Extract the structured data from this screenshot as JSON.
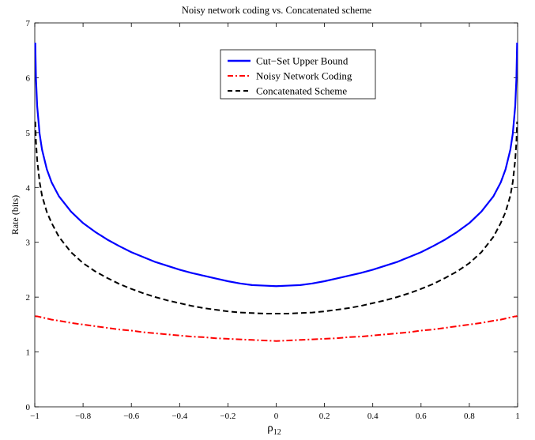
{
  "chart_data": {
    "type": "line",
    "title": "Noisy network coding vs. Concatenated scheme",
    "xlabel": "ρ",
    "xlabel_sub": "12",
    "ylabel": "Rate (bits)",
    "xlim": [
      -1,
      1
    ],
    "ylim": [
      0,
      7
    ],
    "xticks": [
      -1,
      -0.8,
      -0.6,
      -0.4,
      -0.2,
      0,
      0.2,
      0.4,
      0.6,
      0.8,
      1
    ],
    "xtick_labels": [
      "−1",
      "−0.8",
      "−0.6",
      "−0.4",
      "−0.2",
      "0",
      "0.2",
      "0.4",
      "0.6",
      "0.8",
      "1"
    ],
    "yticks": [
      0,
      1,
      2,
      3,
      4,
      5,
      6,
      7
    ],
    "ytick_labels": [
      "0",
      "1",
      "2",
      "3",
      "4",
      "5",
      "6",
      "7"
    ],
    "grid": false,
    "legend_position": "top-center",
    "x": [
      -0.998,
      -0.995,
      -0.99,
      -0.98,
      -0.97,
      -0.95,
      -0.93,
      -0.9,
      -0.85,
      -0.8,
      -0.75,
      -0.7,
      -0.65,
      -0.6,
      -0.55,
      -0.5,
      -0.45,
      -0.4,
      -0.35,
      -0.3,
      -0.25,
      -0.2,
      -0.15,
      -0.1,
      -0.05,
      0,
      0.05,
      0.1,
      0.15,
      0.2,
      0.25,
      0.3,
      0.35,
      0.4,
      0.45,
      0.5,
      0.55,
      0.6,
      0.65,
      0.7,
      0.75,
      0.8,
      0.85,
      0.9,
      0.93,
      0.95,
      0.97,
      0.98,
      0.99,
      0.995,
      0.998
    ],
    "series": [
      {
        "name": "Cut−Set Upper Bound",
        "color": "#0000ff",
        "style": "solid",
        "values": [
          6.64,
          5.98,
          5.48,
          4.98,
          4.69,
          4.33,
          4.09,
          3.84,
          3.56,
          3.35,
          3.19,
          3.05,
          2.93,
          2.82,
          2.73,
          2.64,
          2.57,
          2.5,
          2.44,
          2.39,
          2.34,
          2.29,
          2.25,
          2.22,
          2.21,
          2.2,
          2.21,
          2.22,
          2.25,
          2.29,
          2.34,
          2.39,
          2.44,
          2.5,
          2.57,
          2.64,
          2.73,
          2.82,
          2.93,
          3.05,
          3.19,
          3.35,
          3.56,
          3.84,
          4.09,
          4.33,
          4.69,
          4.98,
          5.48,
          5.98,
          6.64
        ]
      },
      {
        "name": "Noisy Network Coding",
        "color": "#ff0000",
        "style": "dashdot",
        "values": [
          1.66,
          1.65,
          1.65,
          1.64,
          1.63,
          1.61,
          1.59,
          1.57,
          1.53,
          1.5,
          1.47,
          1.44,
          1.41,
          1.39,
          1.36,
          1.34,
          1.32,
          1.3,
          1.28,
          1.27,
          1.25,
          1.24,
          1.23,
          1.22,
          1.21,
          1.2,
          1.21,
          1.22,
          1.23,
          1.24,
          1.25,
          1.27,
          1.28,
          1.3,
          1.32,
          1.34,
          1.36,
          1.39,
          1.41,
          1.44,
          1.47,
          1.5,
          1.53,
          1.57,
          1.59,
          1.61,
          1.63,
          1.64,
          1.65,
          1.65,
          1.66
        ]
      },
      {
        "name": "Concatenated Scheme",
        "color": "#000000",
        "style": "dashed",
        "values": [
          5.2,
          4.83,
          4.5,
          4.1,
          3.85,
          3.55,
          3.35,
          3.1,
          2.82,
          2.62,
          2.47,
          2.35,
          2.24,
          2.15,
          2.07,
          2.0,
          1.94,
          1.89,
          1.84,
          1.8,
          1.77,
          1.74,
          1.72,
          1.71,
          1.7,
          1.7,
          1.7,
          1.71,
          1.72,
          1.74,
          1.77,
          1.8,
          1.84,
          1.89,
          1.94,
          2.0,
          2.07,
          2.15,
          2.24,
          2.35,
          2.47,
          2.62,
          2.82,
          3.1,
          3.35,
          3.55,
          3.85,
          4.1,
          4.5,
          4.83,
          5.2
        ]
      }
    ]
  }
}
